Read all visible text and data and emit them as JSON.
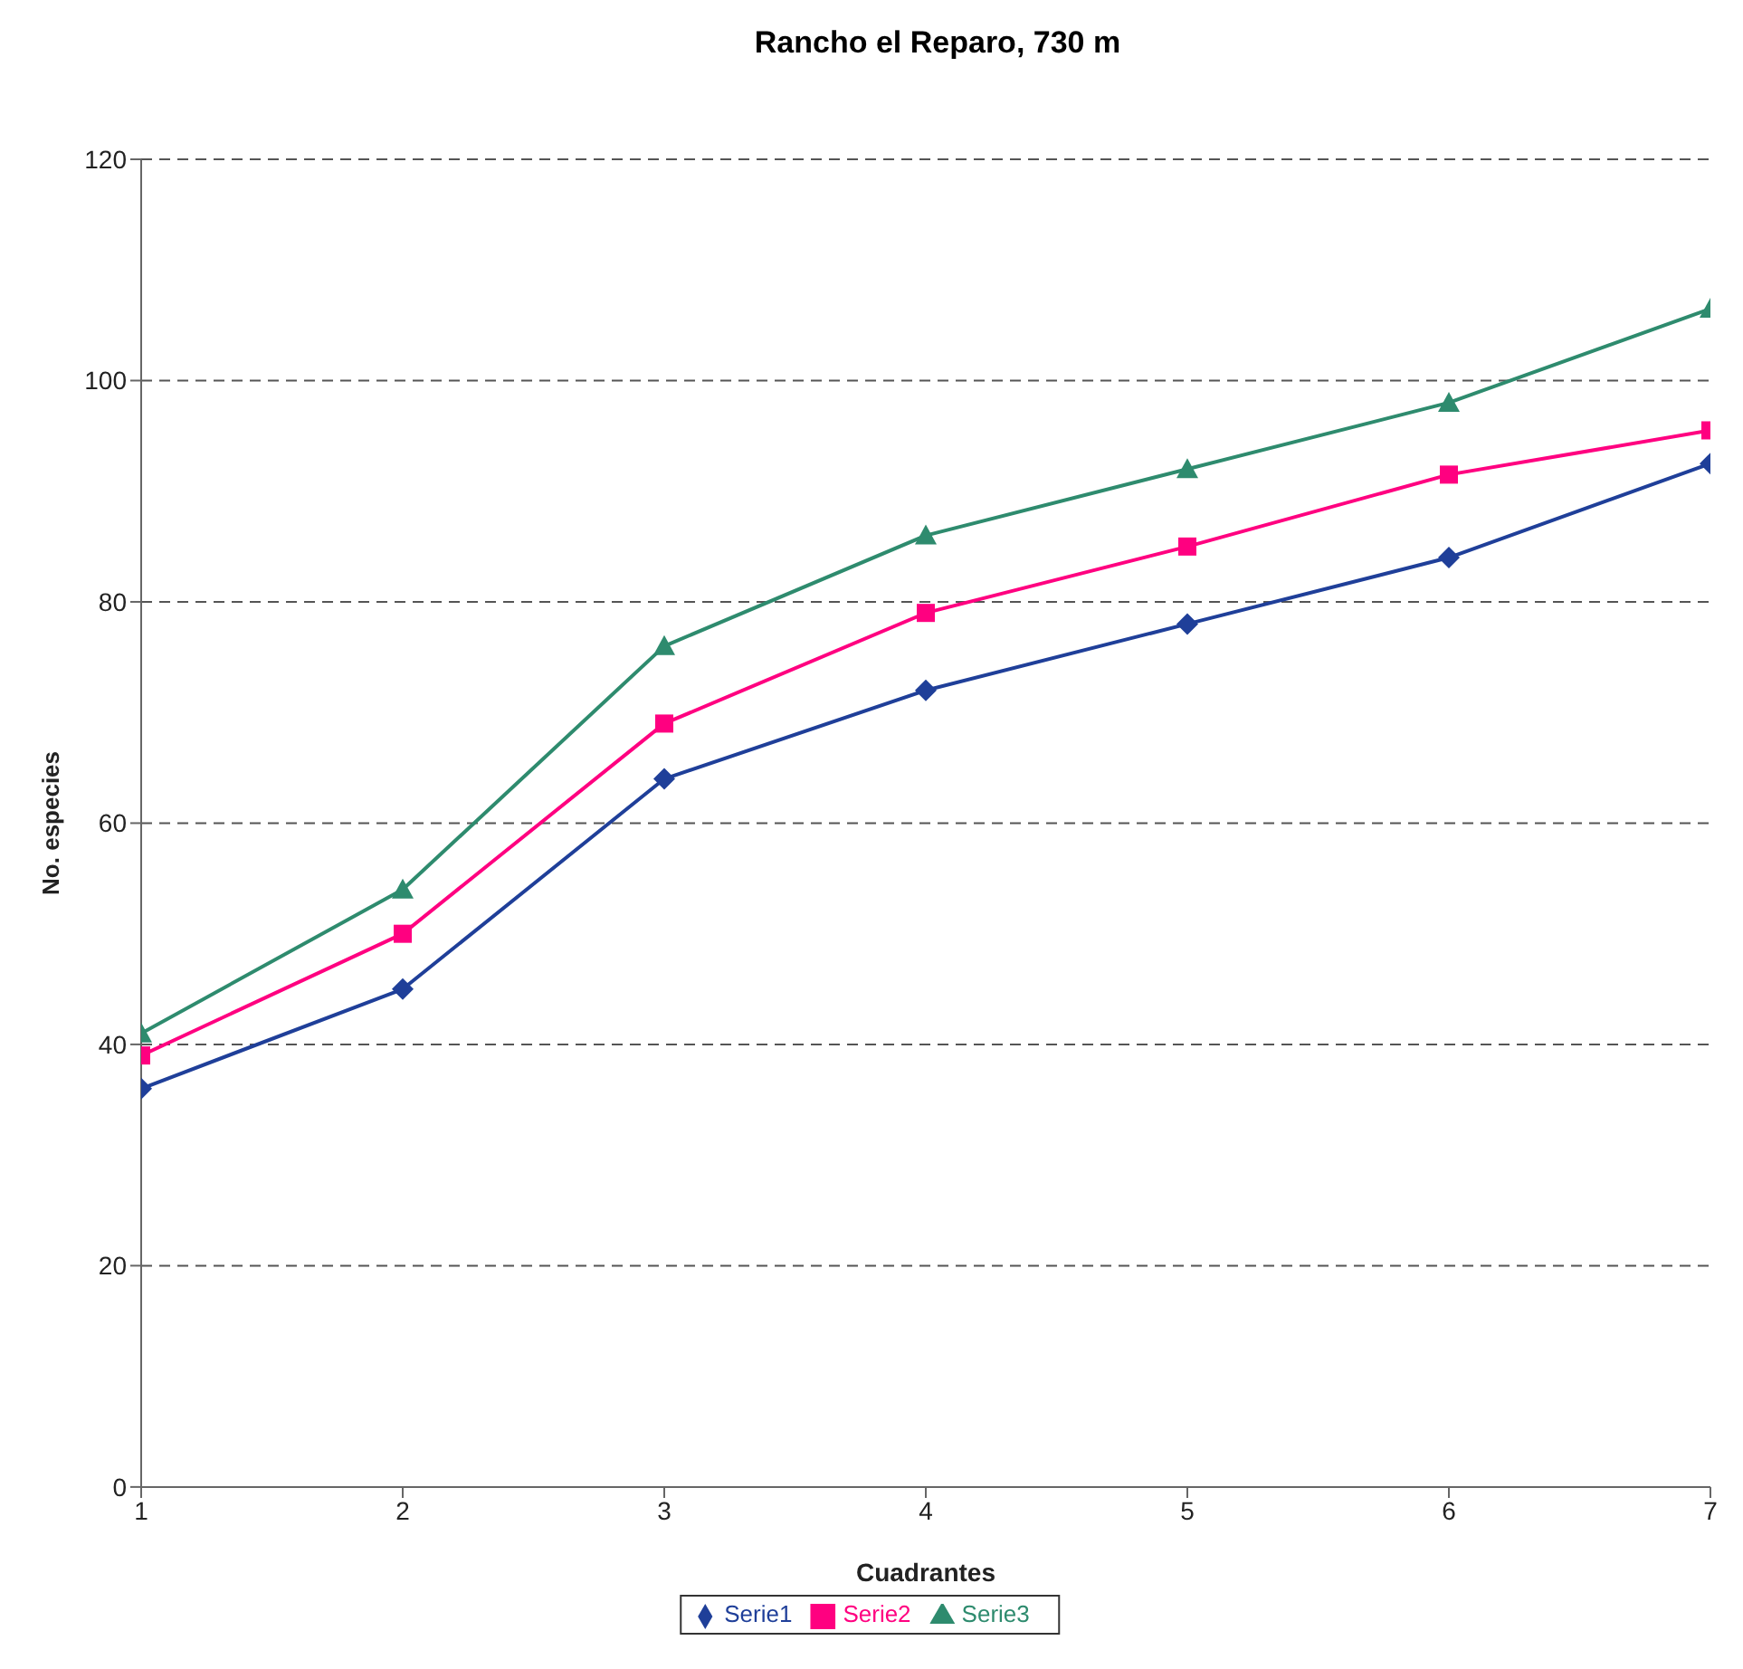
{
  "chart_data": {
    "type": "line",
    "title": "Rancho el Reparo, 730 m",
    "xlabel": "Cuadrantes",
    "ylabel": "No. especies",
    "x": [
      1,
      2,
      3,
      4,
      5,
      6,
      7
    ],
    "xlim": [
      1,
      7
    ],
    "xticks": [
      1,
      2,
      3,
      4,
      5,
      6,
      7
    ],
    "ylim": [
      0,
      120
    ],
    "yticks": [
      0,
      20,
      40,
      60,
      80,
      100,
      120
    ],
    "grid": "y",
    "legend": "bottom",
    "line_style": "solid",
    "series": [
      {
        "name": "Serie1",
        "color": "#1f3f99",
        "marker": "diamond",
        "values": [
          36,
          45,
          64,
          72,
          78,
          84,
          92.5
        ]
      },
      {
        "name": "Serie2",
        "color": "#ff0080",
        "marker": "square",
        "values": [
          39,
          50,
          69,
          79,
          85,
          91.5,
          95.5
        ]
      },
      {
        "name": "Serie3",
        "color": "#2e8b6e",
        "marker": "triangle",
        "values": [
          41,
          54,
          76,
          86,
          92,
          98,
          106.5
        ]
      }
    ]
  }
}
